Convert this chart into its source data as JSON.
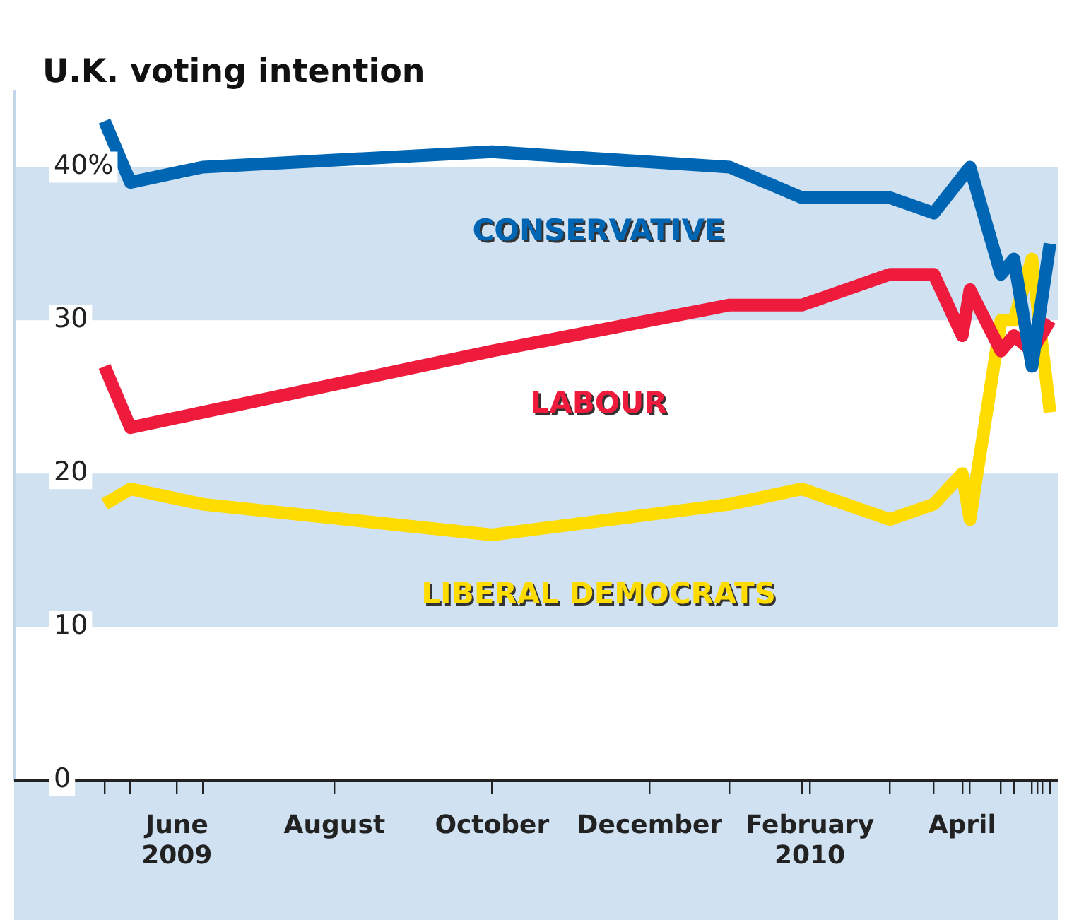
{
  "chart_data": {
    "type": "line",
    "title": "U.K. voting intention",
    "series": [
      {
        "name": "CONSERVATIVE",
        "color": "#0066b3",
        "x": [
          "2009-05-04",
          "2009-05-14",
          "2009-06-11",
          "2009-10-01",
          "2010-01-01",
          "2010-01-29",
          "2010-03-04",
          "2010-03-21",
          "2010-04-04",
          "2010-04-16",
          "2010-04-21",
          "2010-04-28",
          "2010-05-05"
        ],
        "values": [
          43,
          39,
          40,
          41,
          40,
          38,
          38,
          37,
          40,
          33,
          34,
          27,
          35
        ]
      },
      {
        "name": "LABOUR",
        "color": "#ee1b3c",
        "x": [
          "2009-05-04",
          "2009-05-14",
          "2009-10-01",
          "2010-01-01",
          "2010-01-29",
          "2010-03-04",
          "2010-03-21",
          "2010-04-01",
          "2010-04-04",
          "2010-04-16",
          "2010-04-21",
          "2010-04-28",
          "2010-05-05"
        ],
        "values": [
          27,
          23,
          28,
          31,
          31,
          33,
          33,
          29,
          32,
          28,
          29,
          28,
          30
        ]
      },
      {
        "name": "LIBERAL DEMOCRATS",
        "color": "#ffdc00",
        "x": [
          "2009-05-04",
          "2009-05-14",
          "2009-06-11",
          "2009-10-01",
          "2010-01-01",
          "2010-01-29",
          "2010-03-04",
          "2010-03-21",
          "2010-04-01",
          "2010-04-04",
          "2010-04-16",
          "2010-04-21",
          "2010-04-28",
          "2010-05-05"
        ],
        "values": [
          18,
          19,
          18,
          16,
          18,
          19,
          17,
          18,
          20,
          17,
          30,
          30,
          34,
          24
        ]
      }
    ],
    "xlim": [
      "2009-03-30",
      "2010-05-08"
    ],
    "xticks": [
      {
        "value": "2009-05-04",
        "label": null
      },
      {
        "value": "2009-05-14",
        "label": null
      },
      {
        "value": "2009-06-01",
        "label": "June 2009"
      },
      {
        "value": "2009-06-11",
        "label": null
      },
      {
        "value": "2009-08-01",
        "label": "August"
      },
      {
        "value": "2009-10-01",
        "label": "October"
      },
      {
        "value": "2009-12-01",
        "label": "December"
      },
      {
        "value": "2010-01-01",
        "label": null
      },
      {
        "value": "2010-01-29",
        "label": null
      },
      {
        "value": "2010-02-01",
        "label": "February 2010"
      },
      {
        "value": "2010-03-04",
        "label": null
      },
      {
        "value": "2010-03-21",
        "label": null
      },
      {
        "value": "2010-04-01",
        "label": "April"
      },
      {
        "value": "2010-04-04",
        "label": null
      },
      {
        "value": "2010-04-16",
        "label": null
      },
      {
        "value": "2010-04-21",
        "label": null
      },
      {
        "value": "2010-04-28",
        "label": null
      },
      {
        "value": "2010-04-30",
        "label": null
      },
      {
        "value": "2010-05-02",
        "label": null
      },
      {
        "value": "2010-05-05",
        "label": null
      }
    ],
    "ylim": [
      0,
      45
    ],
    "yticks": [
      0,
      10,
      20,
      30,
      {
        "value": 40,
        "label": "40%"
      }
    ],
    "bands": [
      {
        "axis": "y",
        "from": 30,
        "to": 40,
        "color": "#d0e1f2"
      },
      {
        "axis": "y",
        "from": 10,
        "to": 20,
        "color": "#d0e1f2"
      }
    ],
    "grid": false,
    "legend": false,
    "marker": "none",
    "line_style": "solid"
  }
}
